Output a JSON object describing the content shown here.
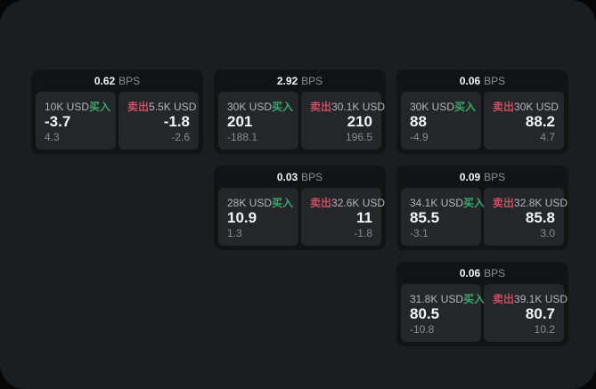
{
  "labels": {
    "bps_unit": "BPS",
    "buy": "买入",
    "sell": "卖出"
  },
  "colors": {
    "surface": "#1c1d1f",
    "card": "#121315",
    "panel": "#242629",
    "buy": "#3aa96c",
    "sell": "#cb4f64",
    "muted": "#8b8e91",
    "amount": "#b4b6b8",
    "delta": "#8a8d90"
  },
  "cards": [
    {
      "row": 1,
      "col": 1,
      "bps": "0.62",
      "buy": {
        "amount": "10K USD",
        "value": "-3.7",
        "delta": "4.3"
      },
      "sell": {
        "amount": "5.5K USD",
        "value": "-1.8",
        "delta": "-2.6"
      }
    },
    {
      "row": 1,
      "col": 2,
      "bps": "2.92",
      "buy": {
        "amount": "30K USD",
        "value": "201",
        "delta": "-188.1"
      },
      "sell": {
        "amount": "30.1K USD",
        "value": "210",
        "delta": "196.5"
      }
    },
    {
      "row": 1,
      "col": 3,
      "bps": "0.06",
      "buy": {
        "amount": "30K USD",
        "value": "88",
        "delta": "-4.9"
      },
      "sell": {
        "amount": "30K USD",
        "value": "88.2",
        "delta": "4.7"
      }
    },
    {
      "row": 2,
      "col": 2,
      "bps": "0.03",
      "buy": {
        "amount": "28K USD",
        "value": "10.9",
        "delta": "1.3"
      },
      "sell": {
        "amount": "32.6K USD",
        "value": "11",
        "delta": "-1.8"
      }
    },
    {
      "row": 2,
      "col": 3,
      "bps": "0.09",
      "buy": {
        "amount": "34.1K USD",
        "value": "85.5",
        "delta": "-3.1"
      },
      "sell": {
        "amount": "32.8K USD",
        "value": "85.8",
        "delta": "3.0"
      }
    },
    {
      "row": 3,
      "col": 3,
      "bps": "0.06",
      "buy": {
        "amount": "31.8K USD",
        "value": "80.5",
        "delta": "-10.8"
      },
      "sell": {
        "amount": "39.1K USD",
        "value": "80.7",
        "delta": "10.2"
      }
    }
  ]
}
